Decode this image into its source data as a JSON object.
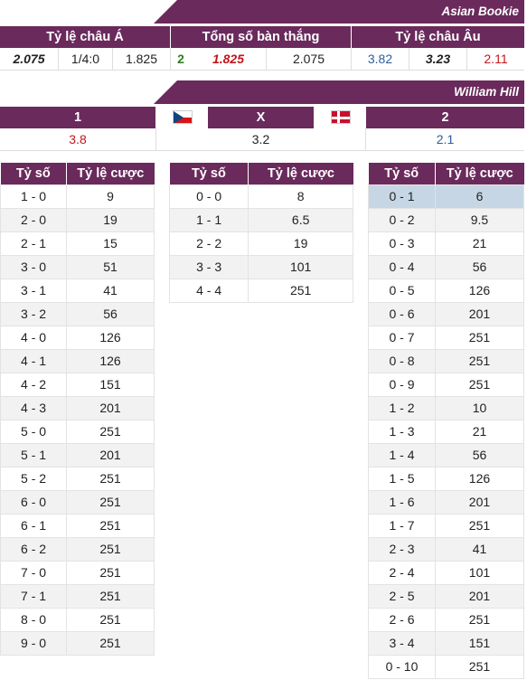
{
  "asian_bookie": {
    "title": "Asian Bookie",
    "headers": [
      "Tỷ lệ châu Á",
      "Tổng số bàn thắng",
      "Tỷ lệ châu Âu"
    ],
    "values": [
      "2.075",
      "1/4:0",
      "1.825",
      "2",
      "1.825",
      "2.075",
      "3.82",
      "3.23",
      "2.11"
    ]
  },
  "william_hill": {
    "title": "William Hill",
    "home_label": "1",
    "draw_label": "X",
    "away_label": "2",
    "home_flag": "czech-flag",
    "away_flag": "denmark-flag",
    "home_odds": "3.8",
    "draw_odds": "3.2",
    "away_odds": "2.1"
  },
  "score_header": {
    "score": "Tỷ số",
    "odds": "Tỷ lệ cược"
  },
  "home_wins": [
    [
      "1 - 0",
      "9"
    ],
    [
      "2 - 0",
      "19"
    ],
    [
      "2 - 1",
      "15"
    ],
    [
      "3 - 0",
      "51"
    ],
    [
      "3 - 1",
      "41"
    ],
    [
      "3 - 2",
      "56"
    ],
    [
      "4 - 0",
      "126"
    ],
    [
      "4 - 1",
      "126"
    ],
    [
      "4 - 2",
      "151"
    ],
    [
      "4 - 3",
      "201"
    ],
    [
      "5 - 0",
      "251"
    ],
    [
      "5 - 1",
      "201"
    ],
    [
      "5 - 2",
      "251"
    ],
    [
      "6 - 0",
      "251"
    ],
    [
      "6 - 1",
      "251"
    ],
    [
      "6 - 2",
      "251"
    ],
    [
      "7 - 0",
      "251"
    ],
    [
      "7 - 1",
      "251"
    ],
    [
      "8 - 0",
      "251"
    ],
    [
      "9 - 0",
      "251"
    ]
  ],
  "draws": [
    [
      "0 - 0",
      "8"
    ],
    [
      "1 - 1",
      "6.5"
    ],
    [
      "2 - 2",
      "19"
    ],
    [
      "3 - 3",
      "101"
    ],
    [
      "4 - 4",
      "251"
    ]
  ],
  "away_wins": [
    [
      "0 - 1",
      "6"
    ],
    [
      "0 - 2",
      "9.5"
    ],
    [
      "0 - 3",
      "21"
    ],
    [
      "0 - 4",
      "56"
    ],
    [
      "0 - 5",
      "126"
    ],
    [
      "0 - 6",
      "201"
    ],
    [
      "0 - 7",
      "251"
    ],
    [
      "0 - 8",
      "251"
    ],
    [
      "0 - 9",
      "251"
    ],
    [
      "1 - 2",
      "10"
    ],
    [
      "1 - 3",
      "21"
    ],
    [
      "1 - 4",
      "56"
    ],
    [
      "1 - 5",
      "126"
    ],
    [
      "1 - 6",
      "201"
    ],
    [
      "1 - 7",
      "251"
    ],
    [
      "2 - 3",
      "41"
    ],
    [
      "2 - 4",
      "101"
    ],
    [
      "2 - 5",
      "201"
    ],
    [
      "2 - 6",
      "251"
    ],
    [
      "3 - 4",
      "151"
    ],
    [
      "0 - 10",
      "251"
    ]
  ],
  "colors": {
    "header_bg": "#6a2a5c",
    "red": "#c0171c",
    "blue": "#2b5e9c",
    "highlight": "#c6d6e4"
  }
}
